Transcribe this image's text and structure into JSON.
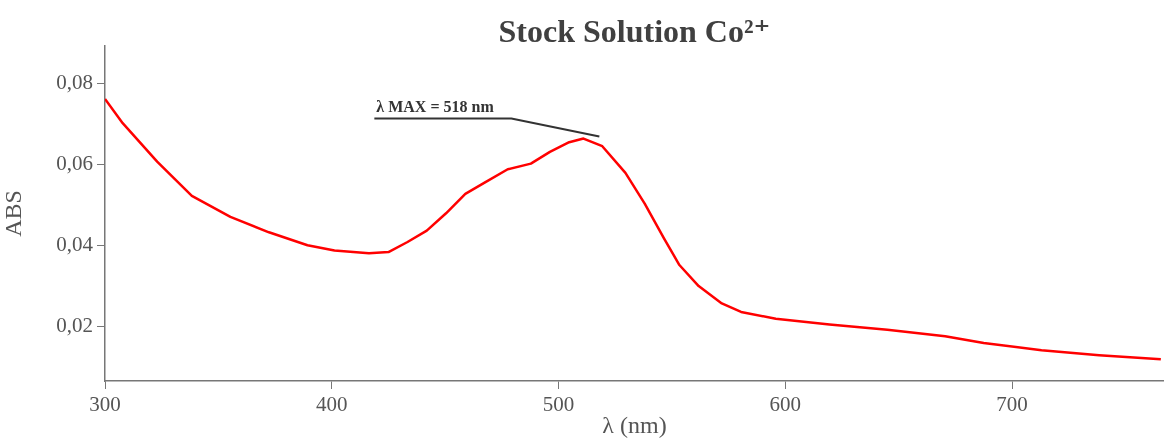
{
  "chart_data": {
    "type": "line",
    "title": "Stock Solution Co²⁺",
    "xlabel": "λ (nm)",
    "ylabel": "ABS",
    "x": [
      300,
      307.8,
      323,
      338.3,
      355.3,
      372.3,
      389.3,
      401.2,
      416.4,
      425,
      433.4,
      441.9,
      450.4,
      458.9,
      467.4,
      477.6,
      487.8,
      496.2,
      504.7,
      511,
      519.3,
      529.5,
      538,
      546.5,
      553.3,
      561.8,
      572,
      580.5,
      595.8,
      619.5,
      645,
      670.5,
      687.5,
      713,
      738.4,
      765.6
    ],
    "series": [
      {
        "color": "#ff0000",
        "values": [
          0.0762,
          0.0702,
          0.0607,
          0.0522,
          0.047,
          0.0432,
          0.04,
          0.0387,
          0.038,
          0.0383,
          0.0408,
          0.0436,
          0.0479,
          0.0527,
          0.0555,
          0.0588,
          0.0602,
          0.0631,
          0.0655,
          0.0664,
          0.0645,
          0.0579,
          0.0503,
          0.0417,
          0.0351,
          0.0299,
          0.0256,
          0.0235,
          0.0218,
          0.0204,
          0.0191,
          0.0175,
          0.0158,
          0.014,
          0.0128,
          0.0118
        ]
      }
    ],
    "xlim": [
      300,
      767
    ],
    "xticks": [
      300,
      400,
      500,
      600,
      700
    ],
    "ylim": [
      0.0064,
      0.0893
    ],
    "yticks": [
      {
        "value": 0.02,
        "label": "0,02"
      },
      {
        "value": 0.04,
        "label": "0,04"
      },
      {
        "value": 0.06,
        "label": "0,06"
      },
      {
        "value": 0.08,
        "label": "0,08"
      }
    ],
    "annotations": [
      {
        "text": "λ MAX = 518 nm",
        "x": 518,
        "y": 0.0664
      }
    ],
    "grid": false,
    "legend": false,
    "marker": "none",
    "line_style": "solid"
  }
}
